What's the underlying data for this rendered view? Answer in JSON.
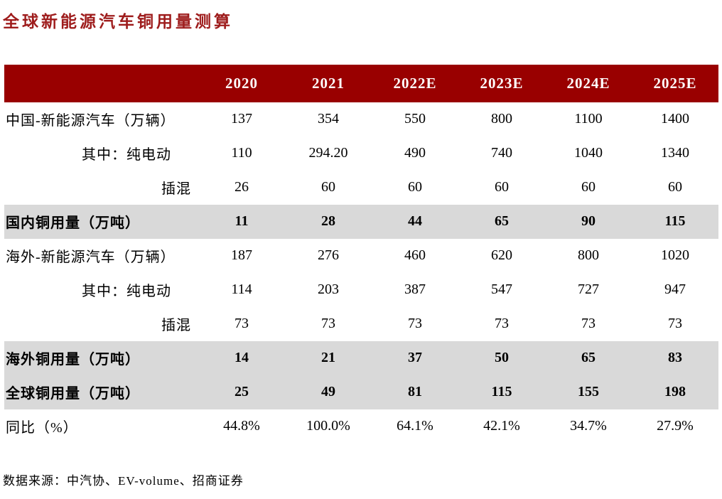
{
  "page_title": "全球新能源汽车铜用量测算",
  "source_note": "数据来源：中汽协、EV-volume、招商证券",
  "colors": {
    "title_red": "#9E1C1C",
    "header_bg": "#990000",
    "header_text": "#FFFFFF",
    "highlight_row_bg": "#D9D9D9",
    "body_text": "#000000"
  },
  "chart_data": {
    "type": "table",
    "title": "全球新能源汽车铜用量测算",
    "columns": [
      "",
      "2020",
      "2021",
      "2022E",
      "2023E",
      "2024E",
      "2025E"
    ],
    "rows": [
      {
        "label": "中国-新能源汽车（万辆）",
        "indent": 0,
        "emphasis": false,
        "values": [
          "137",
          "354",
          "550",
          "800",
          "1100",
          "1400"
        ]
      },
      {
        "label": "其中：纯电动",
        "indent": 1,
        "emphasis": false,
        "values": [
          "110",
          "294.20",
          "490",
          "740",
          "1040",
          "1340"
        ]
      },
      {
        "label": "插混",
        "indent": 2,
        "emphasis": false,
        "values": [
          "26",
          "60",
          "60",
          "60",
          "60",
          "60"
        ]
      },
      {
        "label": "国内铜用量（万吨）",
        "indent": 0,
        "emphasis": true,
        "values": [
          "11",
          "28",
          "44",
          "65",
          "90",
          "115"
        ]
      },
      {
        "label": "海外-新能源汽车（万辆）",
        "indent": 0,
        "emphasis": false,
        "values": [
          "187",
          "276",
          "460",
          "620",
          "800",
          "1020"
        ]
      },
      {
        "label": "其中：纯电动",
        "indent": 1,
        "emphasis": false,
        "values": [
          "114",
          "203",
          "387",
          "547",
          "727",
          "947"
        ]
      },
      {
        "label": "插混",
        "indent": 2,
        "emphasis": false,
        "values": [
          "73",
          "73",
          "73",
          "73",
          "73",
          "73"
        ]
      },
      {
        "label": "海外铜用量（万吨）",
        "indent": 0,
        "emphasis": true,
        "values": [
          "14",
          "21",
          "37",
          "50",
          "65",
          "83"
        ]
      },
      {
        "label": "全球铜用量（万吨）",
        "indent": 0,
        "emphasis": true,
        "values": [
          "25",
          "49",
          "81",
          "115",
          "155",
          "198"
        ]
      },
      {
        "label": "同比（%）",
        "indent": 0,
        "emphasis": false,
        "values": [
          "44.8%",
          "100.0%",
          "64.1%",
          "42.1%",
          "34.7%",
          "27.9%"
        ]
      }
    ]
  }
}
